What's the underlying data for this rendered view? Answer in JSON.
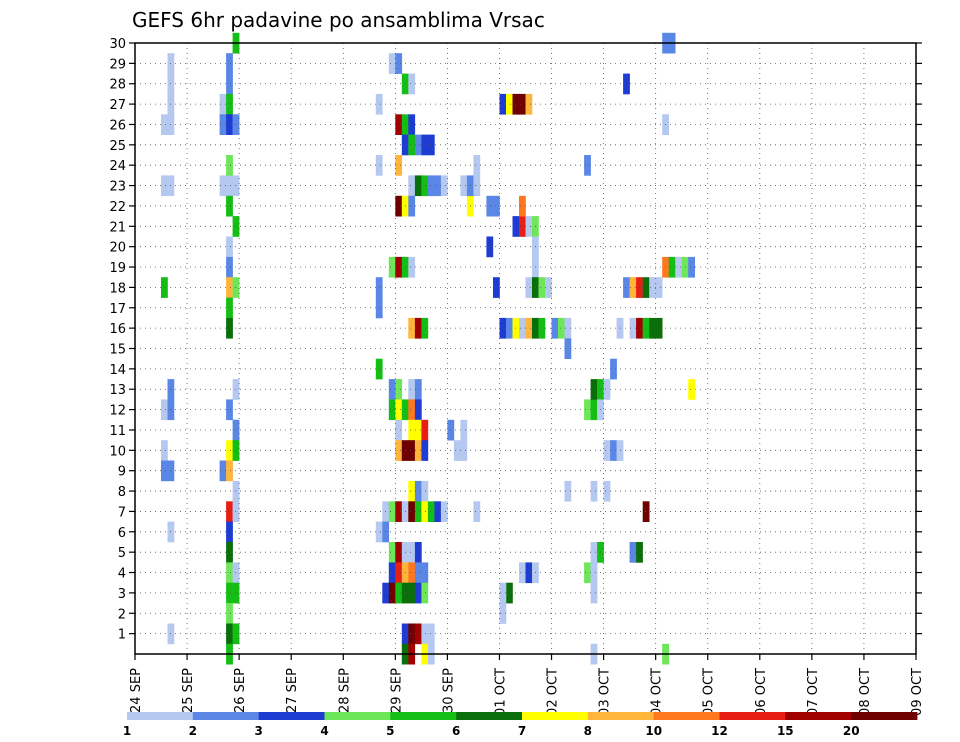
{
  "title": "GEFS 6hr padavine po ansamblima Vrsac",
  "chart_data": {
    "type": "heatmap",
    "title": "GEFS 6hr padavine po ansamblima Vrsac",
    "x_labels": [
      "24 SEP",
      "25 SEP",
      "26 SEP",
      "27 SEP",
      "28 SEP",
      "29 SEP",
      "30 SEP",
      "01 OCT",
      "02 OCT",
      "03 OCT",
      "04 OCT",
      "05 OCT",
      "06 OCT",
      "07 OCT",
      "08 OCT",
      "09 OCT"
    ],
    "y_labels": [
      "1",
      "2",
      "3",
      "4",
      "5",
      "6",
      "7",
      "8",
      "9",
      "10",
      "11",
      "12",
      "13",
      "14",
      "15",
      "16",
      "17",
      "18",
      "19",
      "20",
      "21",
      "22",
      "23",
      "24",
      "25",
      "26",
      "27",
      "28",
      "29",
      "30"
    ],
    "xlim": [
      0,
      60
    ],
    "ylim": [
      0,
      30
    ],
    "grid": true,
    "levels": [
      "1",
      "2",
      "3",
      "4",
      "5",
      "6",
      "7",
      "8",
      "10",
      "12",
      "15",
      "20"
    ],
    "level_colors": [
      "#b4c8f0",
      "#5a87e6",
      "#1e3cd2",
      "#6ee65a",
      "#14be14",
      "#0a6e0a",
      "#ffff00",
      "#ffb43c",
      "#ff781e",
      "#e61e14",
      "#a00000",
      "#6e0000"
    ],
    "cells": [
      [
        2.5,
        29,
        0
      ],
      [
        2.5,
        28,
        0
      ],
      [
        2.5,
        27,
        0
      ],
      [
        2,
        26,
        0
      ],
      [
        2.5,
        26,
        0
      ],
      [
        2,
        23,
        0
      ],
      [
        2.5,
        23,
        0
      ],
      [
        2,
        18,
        4
      ],
      [
        2.5,
        13,
        1
      ],
      [
        2,
        12,
        0
      ],
      [
        2.5,
        12,
        1
      ],
      [
        2,
        10,
        0
      ],
      [
        2,
        9,
        1
      ],
      [
        2.5,
        9,
        1
      ],
      [
        2.5,
        6,
        0
      ],
      [
        2.5,
        1,
        0
      ],
      [
        7.5,
        30,
        4
      ],
      [
        7,
        29,
        1
      ],
      [
        7,
        28,
        1
      ],
      [
        6.5,
        27,
        0
      ],
      [
        7,
        27,
        4
      ],
      [
        6.5,
        26,
        1
      ],
      [
        7,
        26,
        2
      ],
      [
        7.5,
        26,
        1
      ],
      [
        6.5,
        23,
        0
      ],
      [
        7,
        23,
        0
      ],
      [
        7.5,
        23,
        0
      ],
      [
        7,
        24,
        3
      ],
      [
        7,
        22,
        4
      ],
      [
        7.5,
        21,
        4
      ],
      [
        7,
        20,
        0
      ],
      [
        7,
        19,
        1
      ],
      [
        7,
        18,
        7
      ],
      [
        7.5,
        18,
        3
      ],
      [
        7,
        17,
        4
      ],
      [
        7,
        16,
        5
      ],
      [
        7.5,
        13,
        0
      ],
      [
        7,
        12,
        1
      ],
      [
        7.5,
        11,
        1
      ],
      [
        7,
        10,
        6
      ],
      [
        7.5,
        10,
        4
      ],
      [
        6.5,
        9,
        1
      ],
      [
        7,
        9,
        7
      ],
      [
        7.5,
        8,
        0
      ],
      [
        7,
        7,
        9
      ],
      [
        7.5,
        7,
        0
      ],
      [
        7,
        6,
        2
      ],
      [
        7,
        5,
        5
      ],
      [
        7,
        4,
        3
      ],
      [
        7.5,
        4,
        0
      ],
      [
        7,
        3,
        4
      ],
      [
        7.5,
        3,
        4
      ],
      [
        7,
        2,
        3
      ],
      [
        7,
        1,
        5
      ],
      [
        7.5,
        1,
        4
      ],
      [
        7,
        0,
        4
      ],
      [
        19.5,
        29,
        0
      ],
      [
        20,
        29,
        1
      ],
      [
        20.5,
        28,
        4
      ],
      [
        21,
        28,
        0
      ],
      [
        18.5,
        27,
        0
      ],
      [
        20,
        26,
        10
      ],
      [
        20.5,
        26,
        4
      ],
      [
        21,
        26,
        2
      ],
      [
        20.5,
        25,
        2
      ],
      [
        21,
        25,
        4
      ],
      [
        21.5,
        25,
        1
      ],
      [
        22,
        25,
        2
      ],
      [
        22.5,
        25,
        2
      ],
      [
        20,
        24,
        7
      ],
      [
        18.5,
        24,
        0
      ],
      [
        21,
        23,
        0
      ],
      [
        21.5,
        23,
        5
      ],
      [
        22,
        23,
        4
      ],
      [
        22.5,
        23,
        1
      ],
      [
        23,
        23,
        1
      ],
      [
        23.5,
        23,
        0
      ],
      [
        20,
        22,
        11
      ],
      [
        20.5,
        22,
        6
      ],
      [
        21,
        22,
        1
      ],
      [
        19.5,
        19,
        3
      ],
      [
        20,
        19,
        10
      ],
      [
        20.5,
        19,
        4
      ],
      [
        21,
        19,
        0
      ],
      [
        18.5,
        18,
        1
      ],
      [
        18.5,
        17,
        1
      ],
      [
        21,
        16,
        7
      ],
      [
        21.5,
        16,
        10
      ],
      [
        22,
        16,
        4
      ],
      [
        18.5,
        14,
        4
      ],
      [
        19.5,
        13,
        1
      ],
      [
        20,
        13,
        3
      ],
      [
        21,
        13,
        0
      ],
      [
        21.5,
        13,
        1
      ],
      [
        19.5,
        12,
        4
      ],
      [
        20,
        12,
        6
      ],
      [
        20.5,
        12,
        4
      ],
      [
        21,
        12,
        8
      ],
      [
        21.5,
        12,
        2
      ],
      [
        20,
        11,
        0
      ],
      [
        21,
        11,
        6
      ],
      [
        21.5,
        11,
        6
      ],
      [
        22,
        11,
        9
      ],
      [
        20,
        10,
        7
      ],
      [
        20.5,
        10,
        11
      ],
      [
        21,
        10,
        11
      ],
      [
        21.5,
        10,
        7
      ],
      [
        22,
        10,
        2
      ],
      [
        21,
        8,
        6
      ],
      [
        21.5,
        8,
        1
      ],
      [
        22,
        8,
        0
      ],
      [
        19,
        7,
        0
      ],
      [
        19.5,
        7,
        3
      ],
      [
        20,
        7,
        10
      ],
      [
        20.5,
        7,
        0
      ],
      [
        21,
        7,
        11
      ],
      [
        21.5,
        7,
        4
      ],
      [
        22,
        7,
        6
      ],
      [
        22.5,
        7,
        4
      ],
      [
        23,
        7,
        2
      ],
      [
        23.5,
        7,
        0
      ],
      [
        18.5,
        6,
        0
      ],
      [
        19,
        6,
        1
      ],
      [
        19.5,
        5,
        3
      ],
      [
        20,
        5,
        10
      ],
      [
        20.5,
        5,
        0
      ],
      [
        21,
        5,
        0
      ],
      [
        21.5,
        5,
        2
      ],
      [
        19.5,
        4,
        2
      ],
      [
        20,
        4,
        9
      ],
      [
        20.5,
        4,
        7
      ],
      [
        21,
        4,
        8
      ],
      [
        21.5,
        4,
        1
      ],
      [
        22,
        4,
        1
      ],
      [
        19,
        3,
        2
      ],
      [
        19.5,
        3,
        11
      ],
      [
        20,
        3,
        4
      ],
      [
        20.5,
        3,
        5
      ],
      [
        21,
        3,
        5
      ],
      [
        21.5,
        3,
        2
      ],
      [
        22,
        3,
        3
      ],
      [
        20.5,
        1,
        2
      ],
      [
        21,
        1,
        11
      ],
      [
        21.5,
        1,
        10
      ],
      [
        22,
        1,
        0
      ],
      [
        22.5,
        1,
        0
      ],
      [
        20.5,
        0,
        5
      ],
      [
        21,
        0,
        10
      ],
      [
        22,
        0,
        6
      ],
      [
        22.5,
        0,
        0
      ],
      [
        24,
        11,
        1
      ],
      [
        24.5,
        10,
        0
      ],
      [
        25,
        10,
        0
      ],
      [
        25,
        11,
        0
      ],
      [
        25,
        23,
        0
      ],
      [
        25.5,
        22,
        6
      ],
      [
        25.5,
        23,
        1
      ],
      [
        26,
        23,
        0
      ],
      [
        26,
        24,
        0
      ],
      [
        26,
        7,
        0
      ],
      [
        27,
        22,
        1
      ],
      [
        27.5,
        22,
        1
      ],
      [
        27,
        20,
        2
      ],
      [
        27.5,
        18,
        2
      ],
      [
        28,
        27,
        2
      ],
      [
        28.5,
        27,
        6
      ],
      [
        29,
        27,
        11
      ],
      [
        29.5,
        27,
        11
      ],
      [
        30,
        27,
        7
      ],
      [
        29,
        21,
        2
      ],
      [
        29.5,
        21,
        9
      ],
      [
        29.5,
        22,
        8
      ],
      [
        30,
        21,
        0
      ],
      [
        30.5,
        21,
        3
      ],
      [
        30.5,
        20,
        0
      ],
      [
        30.5,
        19,
        0
      ],
      [
        28,
        16,
        2
      ],
      [
        28.5,
        16,
        1
      ],
      [
        29,
        16,
        6
      ],
      [
        29.5,
        16,
        0
      ],
      [
        30,
        16,
        7
      ],
      [
        30.5,
        16,
        5
      ],
      [
        30,
        18,
        0
      ],
      [
        30.5,
        18,
        5
      ],
      [
        31,
        18,
        3
      ],
      [
        31.5,
        18,
        0
      ],
      [
        31,
        16,
        4
      ],
      [
        32,
        16,
        1
      ],
      [
        32.5,
        16,
        3
      ],
      [
        33,
        16,
        0
      ],
      [
        33,
        15,
        1
      ],
      [
        28.5,
        3,
        5
      ],
      [
        28,
        3,
        0
      ],
      [
        28,
        2,
        0
      ],
      [
        29.5,
        4,
        0
      ],
      [
        30,
        4,
        2
      ],
      [
        30.5,
        4,
        0
      ],
      [
        34.5,
        24,
        1
      ],
      [
        33,
        8,
        0
      ],
      [
        35,
        5,
        0
      ],
      [
        35.5,
        5,
        4
      ],
      [
        34.5,
        4,
        3
      ],
      [
        35,
        4,
        0
      ],
      [
        35,
        3,
        0
      ],
      [
        34.5,
        12,
        3
      ],
      [
        35,
        12,
        4
      ],
      [
        35,
        13,
        5
      ],
      [
        35.5,
        13,
        4
      ],
      [
        35.5,
        12,
        0
      ],
      [
        36,
        13,
        0
      ],
      [
        36,
        10,
        0
      ],
      [
        36.5,
        10,
        1
      ],
      [
        36,
        8,
        0
      ],
      [
        35,
        8,
        0
      ],
      [
        37,
        10,
        0
      ],
      [
        38,
        5,
        1
      ],
      [
        38.5,
        5,
        5
      ],
      [
        36.5,
        14,
        1
      ],
      [
        37,
        16,
        0
      ],
      [
        37.5,
        18,
        1
      ],
      [
        38,
        18,
        7
      ],
      [
        38.5,
        18,
        9
      ],
      [
        39,
        18,
        5
      ],
      [
        39.5,
        18,
        0
      ],
      [
        40,
        18,
        0
      ],
      [
        38,
        16,
        0
      ],
      [
        38.5,
        16,
        10
      ],
      [
        39,
        16,
        4
      ],
      [
        39.5,
        16,
        5
      ],
      [
        40,
        16,
        5
      ],
      [
        39,
        7,
        11
      ],
      [
        40.5,
        19,
        8
      ],
      [
        41,
        19,
        4
      ],
      [
        41.5,
        19,
        0
      ],
      [
        42,
        19,
        3
      ],
      [
        42.5,
        19,
        1
      ],
      [
        42.5,
        13,
        6
      ],
      [
        40.5,
        30,
        1
      ],
      [
        41,
        30,
        1
      ],
      [
        40.5,
        26,
        0
      ],
      [
        37.5,
        28,
        2
      ],
      [
        40.5,
        0,
        3
      ],
      [
        35,
        0,
        0
      ]
    ]
  }
}
